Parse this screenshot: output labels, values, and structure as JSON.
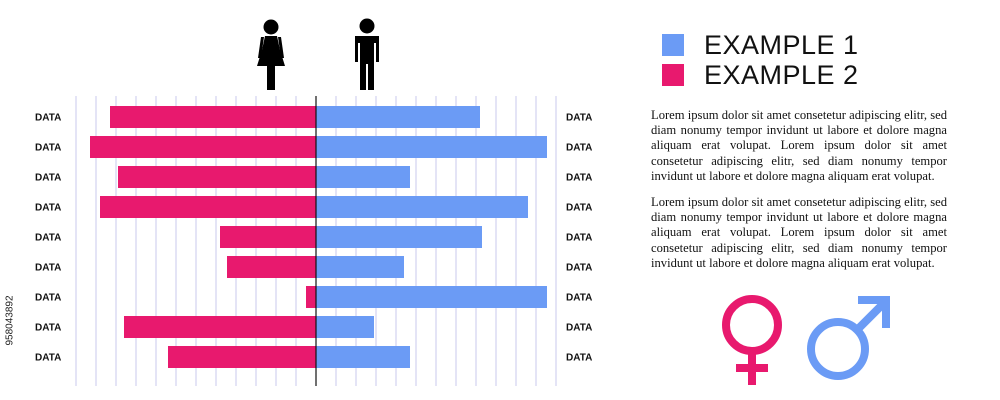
{
  "stock_id": "958043892",
  "legend": {
    "items": [
      {
        "label": "EXAMPLE 1",
        "color": "#6b9bf5"
      },
      {
        "label": "EXAMPLE 2",
        "color": "#e8196e"
      }
    ]
  },
  "paragraphs": [
    "Lorem ipsum dolor sit amet consetetur adipiscing elitr, sed diam nonumy tempor invidunt ut labore et dolore magna aliquam erat volupat. Lorem ipsum dolor sit amet consetetur adipiscing elitr, sed diam nonumy tempor invidunt ut labore et dolore magna aliquam erat volupat.",
    "Lorem ipsum dolor sit amet consetetur adipiscing elitr, sed diam nonumy tempor invidunt ut labore et dolore magna aliquam erat volupat. Lorem ipsum dolor sit amet consetetur adipiscing elitr, sed diam nonumy tempor invidunt ut labore et dolore magna aliquam erat volupat."
  ],
  "icons": {
    "top_left": "woman-icon",
    "top_right": "man-icon",
    "bottom_left": "female-symbol-icon",
    "bottom_right": "male-symbol-icon"
  },
  "chart_data": {
    "type": "bar",
    "orientation": "horizontal-diverging",
    "categories": [
      "DATA",
      "DATA",
      "DATA",
      "DATA",
      "DATA",
      "DATA",
      "DATA",
      "DATA",
      "DATA"
    ],
    "series": [
      {
        "name": "EXAMPLE 2",
        "side": "left",
        "color": "#e8196e",
        "values": [
          20.6,
          22.6,
          19.8,
          21.6,
          9.6,
          8.9,
          1.0,
          19.2,
          14.8
        ]
      },
      {
        "name": "EXAMPLE 1",
        "side": "right",
        "color": "#6b9bf5",
        "values": [
          16.4,
          23.1,
          9.4,
          21.2,
          16.6,
          8.8,
          23.1,
          5.8,
          9.4
        ]
      }
    ],
    "xlim": [
      -24,
      24
    ],
    "grid": true,
    "tick_labels_shown": false,
    "legend_position": "top-right"
  }
}
